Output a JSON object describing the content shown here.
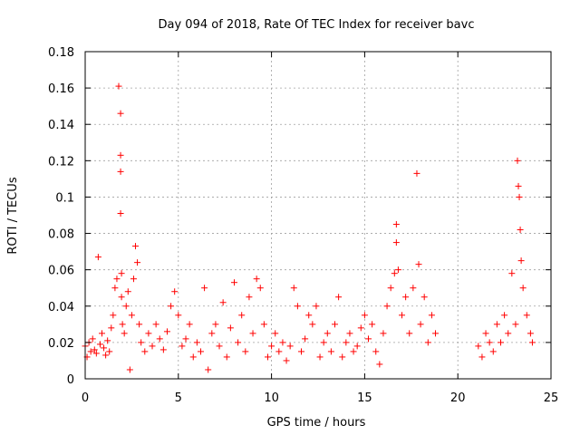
{
  "chart_data": {
    "type": "scatter",
    "title": "Day 094 of 2018, Rate Of TEC Index for receiver bavc",
    "xlabel": "GPS time / hours",
    "ylabel": "ROTI / TECUs",
    "xlim": [
      0,
      25
    ],
    "ylim": [
      0,
      0.18
    ],
    "x_ticks": [
      0,
      5,
      10,
      15,
      20,
      25
    ],
    "x_tick_labels": [
      "0",
      "5",
      "10",
      "15",
      "20",
      "25"
    ],
    "y_ticks": [
      0,
      0.02,
      0.04,
      0.06,
      0.08,
      0.1,
      0.12,
      0.14,
      0.16,
      0.18
    ],
    "y_tick_labels": [
      "0",
      "0.02",
      "0.04",
      "0.06",
      "0.08",
      "0.1",
      "0.12",
      "0.14",
      "0.16",
      "0.18"
    ],
    "grid": true,
    "marker": "+",
    "marker_color": "#ff0000",
    "data_gap_hours": [
      19.0,
      21.0
    ],
    "series": [
      {
        "x": [
          0.0,
          0.1,
          0.2,
          0.3,
          0.4,
          0.5,
          0.6,
          0.7,
          0.8,
          0.9,
          1.0,
          1.1,
          1.2,
          1.3,
          1.4,
          1.5,
          1.6,
          1.7,
          1.8,
          1.9,
          1.9,
          1.9,
          1.9,
          1.95,
          1.95,
          2.0,
          2.1,
          2.2,
          2.3,
          2.4,
          2.5,
          2.6,
          2.7,
          2.8,
          2.9,
          3.0,
          3.2,
          3.4,
          3.6,
          3.8,
          4.0,
          4.2,
          4.4,
          4.6,
          4.8,
          5.0,
          5.2,
          5.4,
          5.6,
          5.8,
          6.0,
          6.2,
          6.4,
          6.6,
          6.8,
          7.0,
          7.2,
          7.4,
          7.6,
          7.8,
          8.0,
          8.2,
          8.4,
          8.6,
          8.8,
          9.0,
          9.2,
          9.4,
          9.6,
          9.8,
          10.0,
          10.2,
          10.4,
          10.6,
          10.8,
          11.0,
          11.2,
          11.4,
          11.6,
          11.8,
          12.0,
          12.2,
          12.4,
          12.6,
          12.8,
          13.0,
          13.2,
          13.4,
          13.6,
          13.8,
          14.0,
          14.2,
          14.4,
          14.6,
          14.8,
          15.0,
          15.2,
          15.4,
          15.6,
          15.8,
          16.0,
          16.2,
          16.4,
          16.6,
          16.7,
          16.7,
          16.8,
          17.0,
          17.2,
          17.4,
          17.6,
          17.8,
          17.9,
          18.0,
          18.2,
          18.4,
          18.6,
          18.8,
          21.1,
          21.3,
          21.5,
          21.7,
          21.9,
          22.1,
          22.3,
          22.5,
          22.7,
          22.9,
          23.1,
          23.2,
          23.25,
          23.3,
          23.35,
          23.4,
          23.5,
          23.7,
          23.9,
          24.0
        ],
        "y": [
          0.018,
          0.012,
          0.02,
          0.015,
          0.022,
          0.016,
          0.014,
          0.067,
          0.019,
          0.025,
          0.017,
          0.013,
          0.021,
          0.015,
          0.028,
          0.035,
          0.05,
          0.055,
          0.161,
          0.146,
          0.123,
          0.114,
          0.091,
          0.058,
          0.045,
          0.03,
          0.025,
          0.04,
          0.048,
          0.005,
          0.035,
          0.055,
          0.073,
          0.064,
          0.03,
          0.02,
          0.015,
          0.025,
          0.018,
          0.03,
          0.022,
          0.016,
          0.026,
          0.04,
          0.048,
          0.035,
          0.018,
          0.022,
          0.03,
          0.012,
          0.02,
          0.015,
          0.05,
          0.005,
          0.025,
          0.03,
          0.018,
          0.042,
          0.012,
          0.028,
          0.053,
          0.02,
          0.035,
          0.015,
          0.045,
          0.025,
          0.055,
          0.05,
          0.03,
          0.012,
          0.018,
          0.025,
          0.015,
          0.02,
          0.01,
          0.018,
          0.05,
          0.04,
          0.015,
          0.022,
          0.035,
          0.03,
          0.04,
          0.012,
          0.02,
          0.025,
          0.015,
          0.03,
          0.045,
          0.012,
          0.02,
          0.025,
          0.015,
          0.018,
          0.028,
          0.035,
          0.022,
          0.03,
          0.015,
          0.008,
          0.025,
          0.04,
          0.05,
          0.058,
          0.085,
          0.075,
          0.06,
          0.035,
          0.045,
          0.025,
          0.05,
          0.113,
          0.063,
          0.03,
          0.045,
          0.02,
          0.035,
          0.025,
          0.018,
          0.012,
          0.025,
          0.02,
          0.015,
          0.03,
          0.02,
          0.035,
          0.025,
          0.058,
          0.03,
          0.12,
          0.106,
          0.1,
          0.082,
          0.065,
          0.05,
          0.035,
          0.025,
          0.02
        ]
      }
    ]
  }
}
